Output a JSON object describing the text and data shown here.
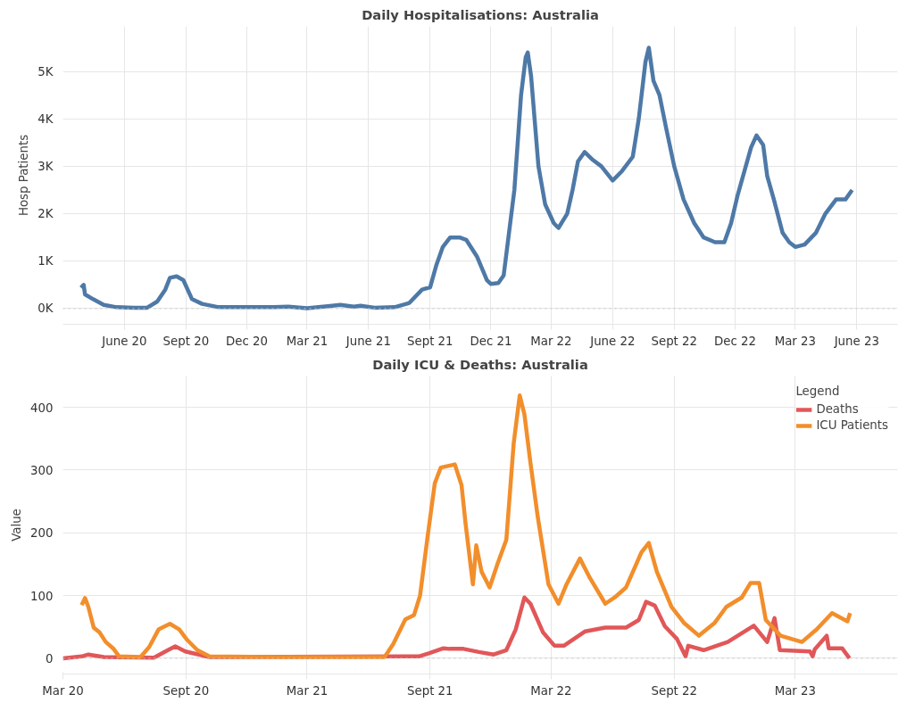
{
  "chart_data": [
    {
      "type": "line",
      "title": "Daily Hospitalisations: Australia",
      "ylabel": "Hosp Patients",
      "xlim": [
        "2020-03-01",
        "2023-08-01"
      ],
      "xticks": [
        {
          "value": "2020-06-01",
          "label": "June 20"
        },
        {
          "value": "2020-09-01",
          "label": "Sept 20"
        },
        {
          "value": "2020-12-01",
          "label": "Dec 20"
        },
        {
          "value": "2021-03-01",
          "label": "Mar 21"
        },
        {
          "value": "2021-06-01",
          "label": "June 21"
        },
        {
          "value": "2021-09-01",
          "label": "Sept 21"
        },
        {
          "value": "2021-12-01",
          "label": "Dec 21"
        },
        {
          "value": "2022-03-01",
          "label": "Mar 22"
        },
        {
          "value": "2022-06-01",
          "label": "June 22"
        },
        {
          "value": "2022-09-01",
          "label": "Sept 22"
        },
        {
          "value": "2022-12-01",
          "label": "Dec 22"
        },
        {
          "value": "2023-03-01",
          "label": "Mar 23"
        },
        {
          "value": "2023-06-01",
          "label": "June 23"
        }
      ],
      "ylim": [
        -330,
        5950
      ],
      "yticks": [
        {
          "value": 0,
          "label": "0K"
        },
        {
          "value": 1000,
          "label": "1K"
        },
        {
          "value": 2000,
          "label": "2K"
        },
        {
          "value": 3000,
          "label": "3K"
        },
        {
          "value": 4000,
          "label": "4K"
        },
        {
          "value": 5000,
          "label": "5K"
        }
      ],
      "grid": true,
      "marker": "none",
      "line_style": "solid",
      "ref_lines": [
        {
          "axis": "y",
          "value": 0,
          "color": "#c8c8c8",
          "line_style": "dotted"
        }
      ],
      "series": [
        {
          "color": "#4e79a7",
          "x": [
            "2020-03-28",
            "2020-04-01",
            "2020-04-03",
            "2020-04-15",
            "2020-05-01",
            "2020-05-20",
            "2020-06-15",
            "2020-07-05",
            "2020-07-20",
            "2020-08-01",
            "2020-08-08",
            "2020-08-18",
            "2020-08-28",
            "2020-09-10",
            "2020-09-25",
            "2020-10-20",
            "2020-12-01",
            "2021-01-10",
            "2021-02-01",
            "2021-03-01",
            "2021-04-01",
            "2021-04-20",
            "2021-05-10",
            "2021-05-20",
            "2021-06-10",
            "2021-07-10",
            "2021-08-01",
            "2021-08-20",
            "2021-09-01",
            "2021-09-10",
            "2021-09-20",
            "2021-10-01",
            "2021-10-15",
            "2021-10-25",
            "2021-11-10",
            "2021-11-25",
            "2021-12-01",
            "2021-12-12",
            "2021-12-20",
            "2022-01-05",
            "2022-01-15",
            "2022-01-22",
            "2022-01-25",
            "2022-01-30",
            "2022-02-10",
            "2022-02-20",
            "2022-03-05",
            "2022-03-12",
            "2022-03-25",
            "2022-04-02",
            "2022-04-10",
            "2022-04-20",
            "2022-05-01",
            "2022-05-15",
            "2022-06-01",
            "2022-06-15",
            "2022-07-01",
            "2022-07-10",
            "2022-07-20",
            "2022-07-25",
            "2022-08-01",
            "2022-08-10",
            "2022-08-20",
            "2022-09-01",
            "2022-09-15",
            "2022-10-01",
            "2022-10-15",
            "2022-11-01",
            "2022-11-15",
            "2022-11-25",
            "2022-12-05",
            "2022-12-25",
            "2023-01-02",
            "2023-01-12",
            "2023-01-18",
            "2023-01-28",
            "2023-02-10",
            "2023-02-20",
            "2023-03-01",
            "2023-03-15",
            "2023-04-01",
            "2023-04-15",
            "2023-05-01",
            "2023-05-15",
            "2023-05-25"
          ],
          "values": [
            440,
            500,
            300,
            200,
            80,
            30,
            20,
            20,
            150,
            400,
            650,
            680,
            600,
            200,
            100,
            30,
            30,
            30,
            40,
            10,
            50,
            80,
            40,
            60,
            20,
            30,
            120,
            400,
            450,
            900,
            1300,
            1500,
            1500,
            1450,
            1100,
            600,
            520,
            540,
            700,
            2500,
            4500,
            5300,
            5400,
            4900,
            3000,
            2200,
            1800,
            1700,
            2000,
            2500,
            3100,
            3300,
            3150,
            3000,
            2700,
            2900,
            3200,
            4000,
            5200,
            5500,
            4800,
            4500,
            3800,
            3000,
            2300,
            1800,
            1500,
            1400,
            1400,
            1800,
            2400,
            3400,
            3650,
            3450,
            2800,
            2300,
            1600,
            1400,
            1300,
            1350,
            1600,
            2000,
            2300,
            2300,
            2500
          ]
        }
      ]
    },
    {
      "type": "line",
      "title": "Daily ICU & Deaths: Australia",
      "ylabel": "Value",
      "xlim": [
        "2020-03-01",
        "2023-08-01"
      ],
      "xticks": [
        {
          "value": "2020-03-01",
          "label": "Mar 20"
        },
        {
          "value": "2020-09-01",
          "label": "Sept 20"
        },
        {
          "value": "2021-03-01",
          "label": "Mar 21"
        },
        {
          "value": "2021-09-01",
          "label": "Sept 21"
        },
        {
          "value": "2022-03-01",
          "label": "Mar 22"
        },
        {
          "value": "2022-09-01",
          "label": "Sept 22"
        },
        {
          "value": "2023-03-01",
          "label": "Mar 23"
        }
      ],
      "ylim": [
        -25,
        450
      ],
      "yticks": [
        0,
        100,
        200,
        300,
        400
      ],
      "grid": true,
      "marker": "none",
      "line_style": "solid",
      "legend": "top right",
      "legend_title": "Legend",
      "ref_lines": [
        {
          "axis": "y",
          "value": 0,
          "color": "#c8c8c8",
          "line_style": "dotted"
        }
      ],
      "series": [
        {
          "name": "Deaths",
          "color": "#e15759",
          "x": [
            "2020-03-01",
            "2020-03-29",
            "2020-04-08",
            "2020-05-01",
            "2020-07-15",
            "2020-08-05",
            "2020-08-16",
            "2020-08-31",
            "2020-10-06",
            "2021-07-26",
            "2021-08-15",
            "2021-08-30",
            "2021-09-21",
            "2021-09-30",
            "2021-10-21",
            "2021-11-13",
            "2021-12-05",
            "2021-12-24",
            "2022-01-07",
            "2022-01-20",
            "2022-01-29",
            "2022-02-17",
            "2022-03-06",
            "2022-03-20",
            "2022-04-21",
            "2022-05-21",
            "2022-06-21",
            "2022-07-10",
            "2022-07-21",
            "2022-08-03",
            "2022-08-18",
            "2022-09-05",
            "2022-09-18",
            "2022-09-22",
            "2022-10-15",
            "2022-11-20",
            "2022-12-29",
            "2023-01-18",
            "2023-01-29",
            "2023-02-06",
            "2023-03-23",
            "2023-03-27",
            "2023-03-30",
            "2023-04-17",
            "2023-04-20",
            "2023-05-10",
            "2023-05-21"
          ],
          "values": [
            0,
            3,
            6,
            2,
            1,
            13,
            19,
            11,
            2,
            3,
            3,
            8,
            16,
            15,
            15,
            10,
            6,
            13,
            46,
            97,
            87,
            41,
            20,
            20,
            43,
            49,
            49,
            61,
            90,
            84,
            51,
            31,
            3,
            20,
            13,
            26,
            52,
            26,
            64,
            13,
            11,
            3,
            14,
            36,
            16,
            16,
            0
          ]
        },
        {
          "name": "ICU Patients",
          "color": "#f28e2b",
          "x": [
            "2020-03-29",
            "2020-04-03",
            "2020-04-08",
            "2020-04-16",
            "2020-04-25",
            "2020-05-04",
            "2020-05-15",
            "2020-05-24",
            "2020-06-25",
            "2020-07-08",
            "2020-07-22",
            "2020-08-08",
            "2020-08-22",
            "2020-09-03",
            "2020-09-18",
            "2020-10-06",
            "2021-01-15",
            "2021-06-25",
            "2021-07-08",
            "2021-07-26",
            "2021-08-08",
            "2021-08-17",
            "2021-08-28",
            "2021-09-08",
            "2021-09-17",
            "2021-10-08",
            "2021-10-18",
            "2021-10-24",
            "2021-11-04",
            "2021-11-09",
            "2021-11-17",
            "2021-11-29",
            "2021-12-10",
            "2021-12-24",
            "2022-01-04",
            "2022-01-13",
            "2022-01-20",
            "2022-01-29",
            "2022-02-09",
            "2022-02-25",
            "2022-03-12",
            "2022-03-24",
            "2022-04-13",
            "2022-04-28",
            "2022-05-21",
            "2022-06-04",
            "2022-06-21",
            "2022-07-14",
            "2022-07-25",
            "2022-08-06",
            "2022-08-28",
            "2022-09-16",
            "2022-10-08",
            "2022-10-31",
            "2022-11-18",
            "2022-12-11",
            "2022-12-24",
            "2023-01-06",
            "2023-01-16",
            "2023-02-07",
            "2023-03-11",
            "2023-04-02",
            "2023-04-25",
            "2023-05-18",
            "2023-05-22"
          ],
          "values": [
            85,
            96,
            82,
            49,
            41,
            26,
            16,
            3,
            2,
            18,
            46,
            55,
            46,
            29,
            13,
            3,
            2,
            2,
            23,
            62,
            69,
            100,
            192,
            279,
            304,
            309,
            276,
            215,
            118,
            180,
            138,
            113,
            148,
            189,
            343,
            419,
            389,
            312,
            225,
            118,
            87,
            118,
            159,
            128,
            87,
            97,
            113,
            169,
            184,
            138,
            82,
            56,
            36,
            56,
            82,
            97,
            120,
            120,
            61,
            36,
            26,
            46,
            72,
            59,
            72
          ]
        }
      ]
    }
  ]
}
